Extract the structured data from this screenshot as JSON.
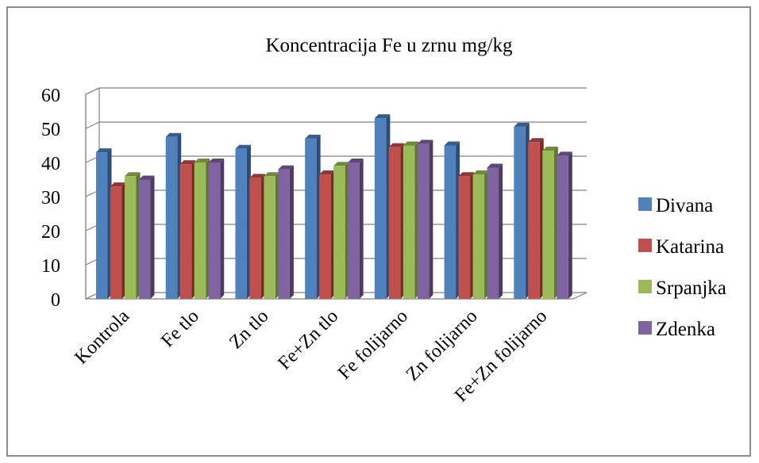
{
  "chart_data": {
    "type": "bar",
    "title": "Koncentracija Fe u zrnu mg/kg",
    "categories": [
      "Kontrola",
      "Fe tlo",
      "Zn tlo",
      "Fe+Zn tlo",
      "Fe folijarno",
      "Zn folijarno",
      "Fe+Zn folijarno"
    ],
    "series": [
      {
        "name": "Divana",
        "values": [
          43,
          47.5,
          44,
          47,
          53,
          45,
          50.5
        ]
      },
      {
        "name": "Katarina",
        "values": [
          33,
          39.5,
          35.5,
          36.5,
          44.5,
          36,
          46
        ]
      },
      {
        "name": "Srpanjka",
        "values": [
          36,
          40,
          36,
          39,
          45,
          36.5,
          43.5
        ]
      },
      {
        "name": "Zdenka",
        "values": [
          35,
          40,
          38,
          40,
          45.5,
          38.5,
          42
        ]
      }
    ],
    "ylim": [
      0,
      60
    ],
    "yticks": [
      0,
      10,
      20,
      30,
      40,
      50,
      60
    ],
    "grid": true,
    "legend": "right",
    "colors": {
      "Divana": {
        "front": "#4f81bd",
        "side": "#2c4d75",
        "top": "#385d8a"
      },
      "Katarina": {
        "front": "#c0504d",
        "side": "#772c2a",
        "top": "#8c3836"
      },
      "Srpanjka": {
        "front": "#9bbb59",
        "side": "#5f7530",
        "top": "#71893f"
      },
      "Zdenka": {
        "front": "#8064a2",
        "side": "#4d3b62",
        "top": "#5c4776"
      }
    }
  }
}
